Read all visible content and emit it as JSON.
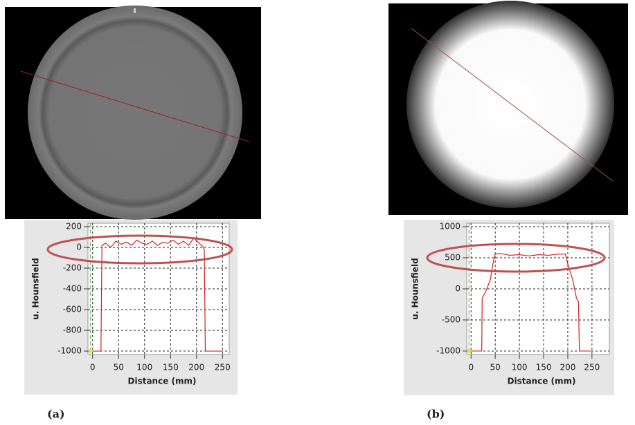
{
  "chart_data": [
    {
      "type": "line",
      "panel_label": "(a)",
      "ylabel": "u. Hounsfield",
      "xlabel": "Distance (mm)",
      "x": [
        0,
        16,
        18,
        25,
        35,
        45,
        55,
        65,
        75,
        85,
        95,
        105,
        115,
        125,
        135,
        145,
        155,
        165,
        175,
        185,
        195,
        205,
        212,
        215,
        217,
        250
      ],
      "values": [
        -1000,
        -1000,
        20,
        40,
        0,
        60,
        30,
        50,
        20,
        70,
        40,
        30,
        60,
        20,
        50,
        40,
        70,
        30,
        60,
        20,
        90,
        40,
        10,
        -20,
        -1000,
        -1000
      ],
      "color": "#d42020",
      "xlim": [
        -9,
        263
      ],
      "ylim": [
        -1033,
        233
      ],
      "xticks": [
        0,
        50,
        100,
        150,
        200,
        250
      ],
      "yticks": [
        -1000,
        -800,
        -600,
        -400,
        -200,
        0,
        200
      ],
      "grid": true
    },
    {
      "type": "line",
      "panel_label": "(b)",
      "ylabel": "u. Hounsfield",
      "xlabel": "Distance (mm)",
      "x": [
        0,
        22,
        23,
        30,
        40,
        45,
        50,
        60,
        80,
        100,
        120,
        140,
        160,
        180,
        195,
        200,
        210,
        218,
        222,
        224,
        250
      ],
      "values": [
        -1000,
        -1000,
        -150,
        -50,
        150,
        400,
        560,
        570,
        540,
        550,
        530,
        550,
        540,
        560,
        560,
        400,
        150,
        -150,
        -200,
        -1000,
        -1000
      ],
      "color": "#d42020",
      "xlim": [
        -9,
        286
      ],
      "ylim": [
        -1056,
        1056
      ],
      "xticks": [
        0,
        50,
        100,
        150,
        200,
        250
      ],
      "yticks": [
        -1000,
        -500,
        0,
        500,
        1000
      ],
      "grid": true
    }
  ]
}
